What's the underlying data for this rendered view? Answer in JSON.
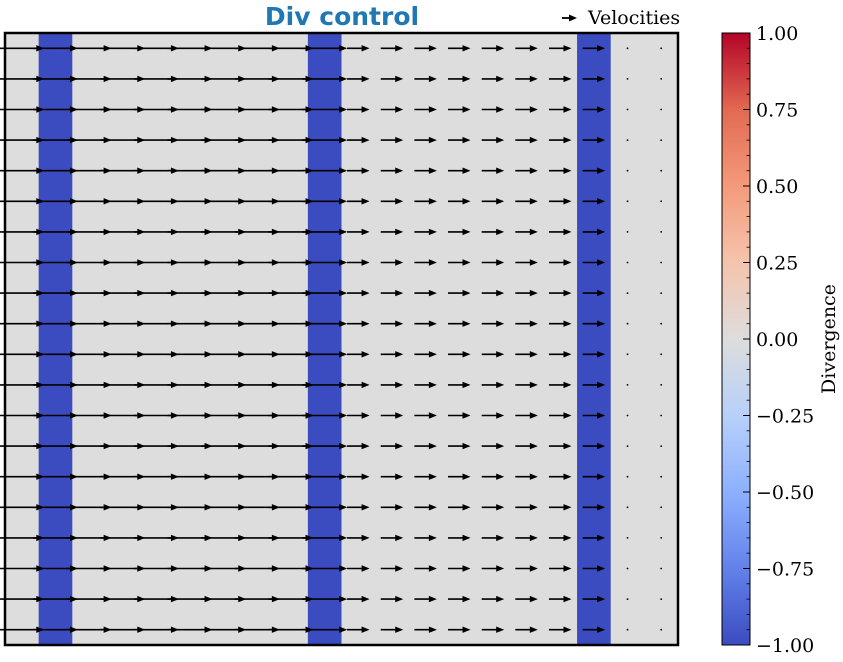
{
  "chart_data": {
    "type": "quiver",
    "title": "Div control",
    "legend": {
      "label": "Velocities",
      "placement": "top-right"
    },
    "grid": false,
    "field": {
      "columns": 20,
      "rows": 20,
      "velocity_u_by_column": [
        2,
        2,
        2,
        2,
        2,
        2,
        2,
        2,
        2,
        2,
        1,
        1,
        1,
        1,
        1,
        1,
        1,
        1,
        0,
        0
      ],
      "velocity_v": 0,
      "divergence_by_column": [
        0,
        -1,
        0,
        0,
        0,
        0,
        0,
        0,
        0,
        -1,
        0,
        0,
        0,
        0,
        0,
        0,
        0,
        -1,
        0,
        0
      ]
    },
    "colorbar": {
      "label": "Divergence",
      "colormap": "coolwarm",
      "vmin": -1.0,
      "vmax": 1.0,
      "ticks": [
        -1.0,
        -0.75,
        -0.5,
        -0.25,
        0.0,
        0.25,
        0.5,
        0.75,
        1.0
      ],
      "tick_labels": [
        "−1.00",
        "−0.75",
        "−0.50",
        "−0.25",
        "0.00",
        "0.25",
        "0.50",
        "0.75",
        "1.00"
      ],
      "colors": {
        "low": "#3b4cc0",
        "mid": "#dddddd",
        "high": "#b40426"
      }
    }
  }
}
